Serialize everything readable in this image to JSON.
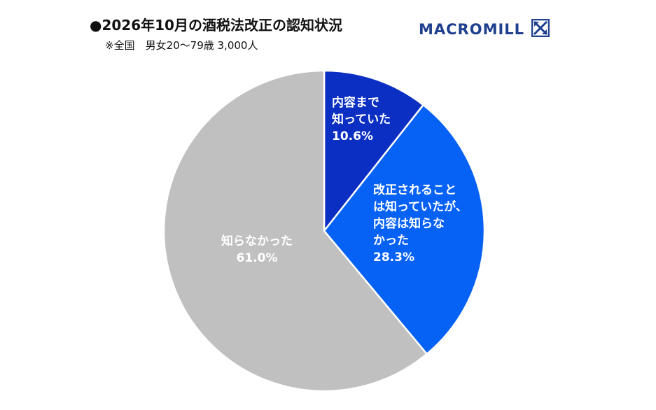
{
  "header": {
    "title": "●2026年10月の酒税法改正の認知状況",
    "subtitle": "※全国　男女20～79歳 3,000人"
  },
  "brand": {
    "logo_text": "MACROMILL",
    "logo_icon": "macromill-x-icon",
    "color": "#1f3f8f"
  },
  "chart_data": {
    "type": "pie",
    "title": "●2026年10月の酒税法改正の認知状況",
    "subtitle": "※全国　男女20～79歳 3,000人",
    "slices": [
      {
        "label_lines": [
          "内容まで",
          "知っていた"
        ],
        "value": 10.6,
        "value_text": "10.6%",
        "color": "#0a2fc2"
      },
      {
        "label_lines": [
          "改正されること",
          "は知っていたが、",
          "内容は知らな",
          "かった"
        ],
        "value": 28.3,
        "value_text": "28.3%",
        "color": "#0661f5"
      },
      {
        "label_lines": [
          "知らなかった"
        ],
        "value": 61.0,
        "value_text": "61.0%",
        "color": "#c0c0c0"
      }
    ],
    "start": "12 o'clock",
    "direction": "clockwise"
  }
}
